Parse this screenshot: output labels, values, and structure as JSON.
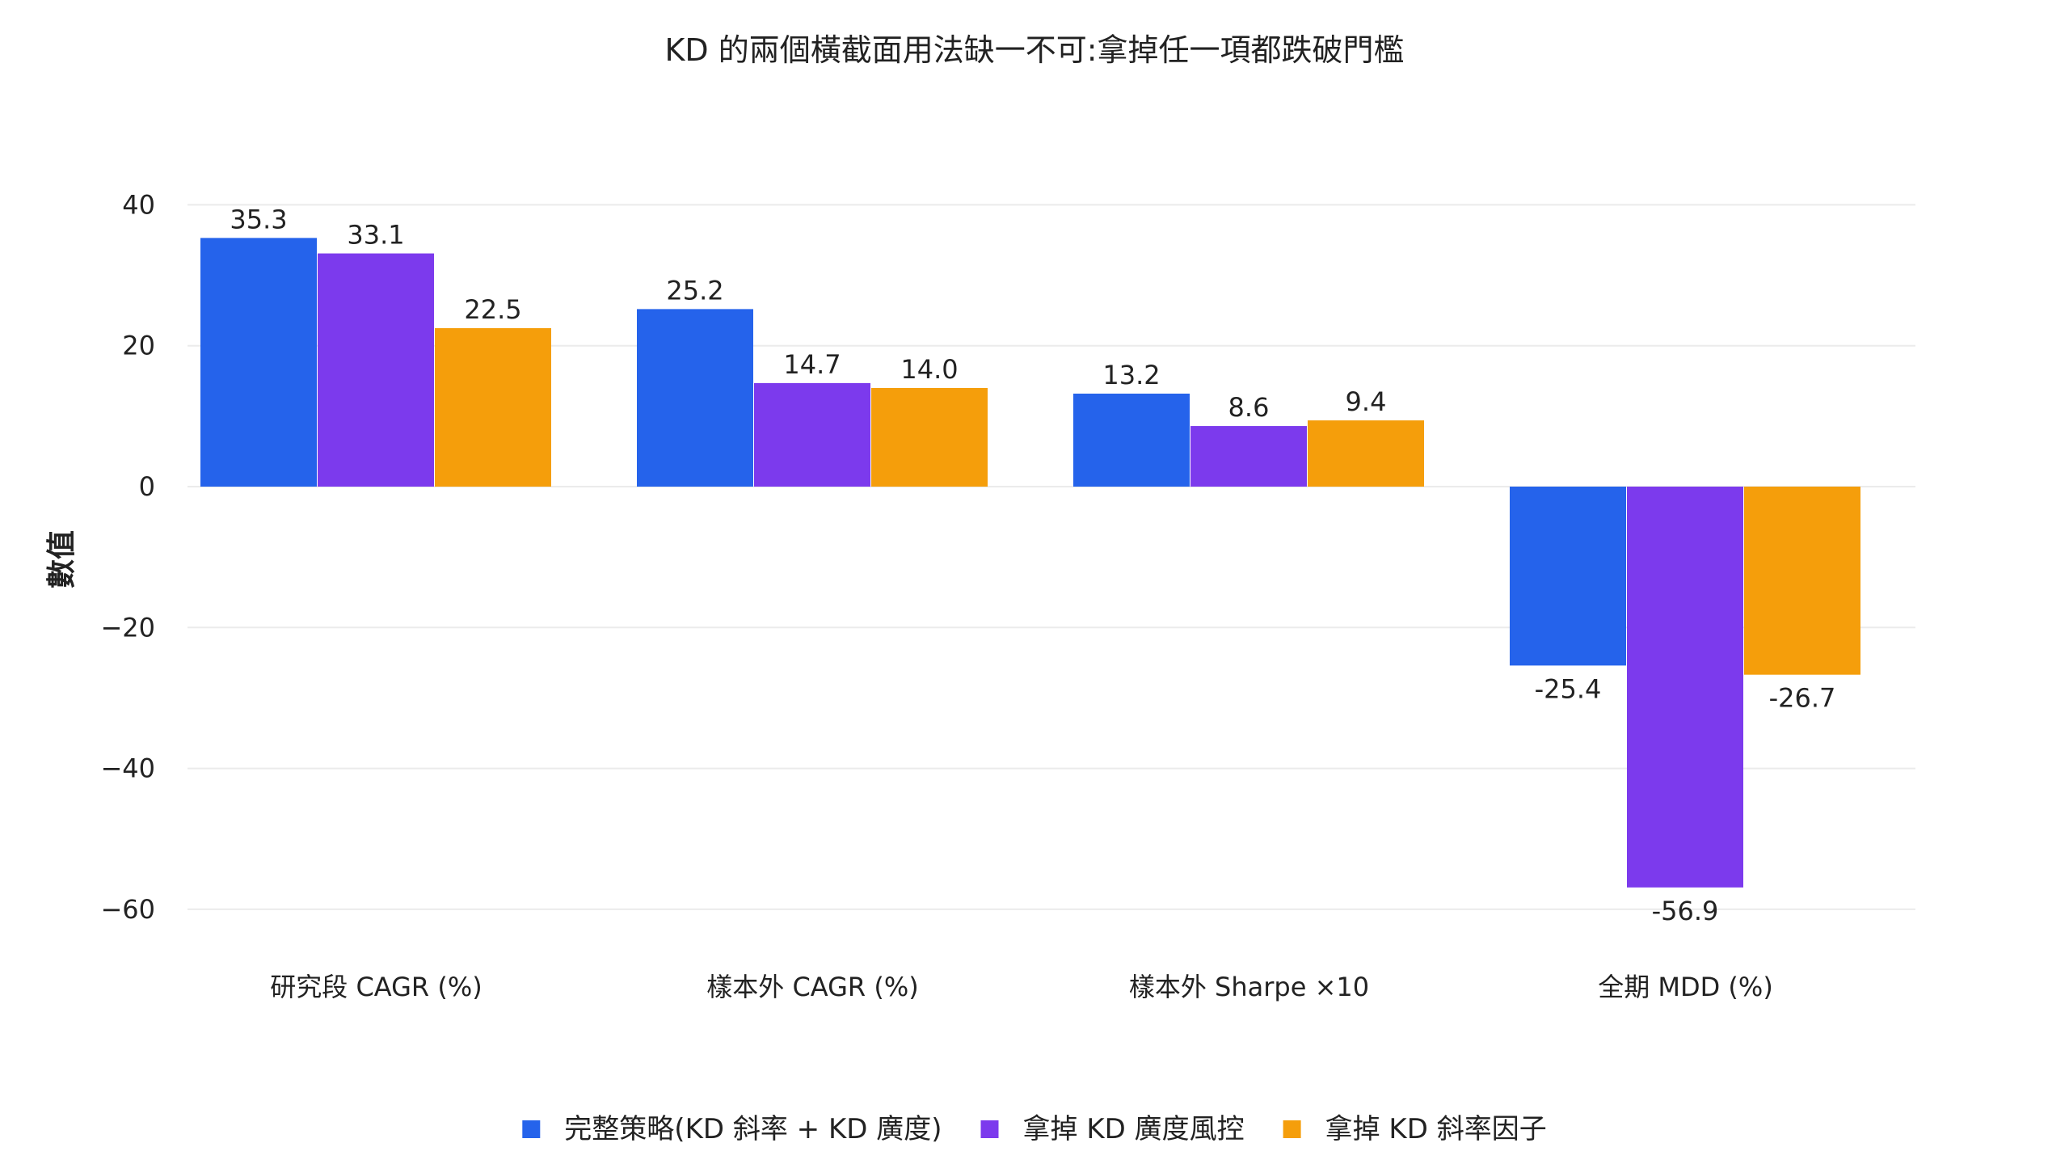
{
  "chart_data": {
    "type": "bar",
    "title": "KD 的兩個橫截面用法缺一不可:拿掉任一項都跌破門檻",
    "xlabel": "",
    "ylabel": "數值",
    "categories": [
      "研究段 CAGR (%)",
      "樣本外 CAGR (%)",
      "樣本外 Sharpe ×10",
      "全期 MDD (%)"
    ],
    "series": [
      {
        "name": "完整策略(KD 斜率 + KD 廣度)",
        "color": "#2563EB",
        "values": [
          35.3,
          25.2,
          13.2,
          -25.4
        ],
        "labels": [
          "35.3",
          "25.2",
          "13.2",
          "-25.4"
        ]
      },
      {
        "name": "拿掉 KD 廣度風控",
        "color": "#7C3AED",
        "values": [
          33.1,
          14.7,
          8.6,
          -56.9
        ],
        "labels": [
          "33.1",
          "14.7",
          "8.6",
          "-56.9"
        ]
      },
      {
        "name": "拿掉 KD 斜率因子",
        "color": "#F59E0B",
        "values": [
          22.5,
          14.0,
          9.4,
          -26.7
        ],
        "labels": [
          "22.5",
          "14.0",
          "9.4",
          "-26.7"
        ]
      }
    ],
    "yticks": [
      40,
      20,
      0,
      -20,
      -40,
      -60
    ],
    "ytick_labels": [
      "40",
      "20",
      "0",
      "−20",
      "−40",
      "−60"
    ],
    "ylim": [
      -63,
      40
    ],
    "grid": true,
    "legend_position": "bottom-center"
  }
}
